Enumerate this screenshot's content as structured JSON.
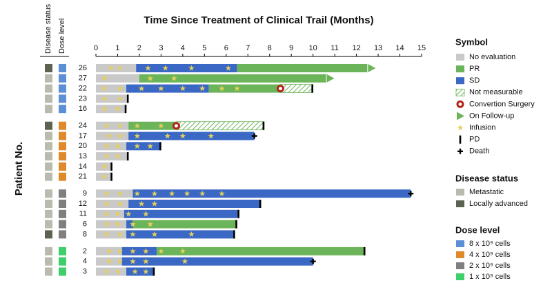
{
  "chart_data": {
    "type": "swimmer",
    "title": "Time Since Treatment of Clinical Trail (Months)",
    "ylabel": "Patient No.",
    "column_headers": [
      "Disease status",
      "Dose level"
    ],
    "xlim": [
      0,
      15
    ],
    "xticks": [
      0,
      1,
      2,
      3,
      4,
      5,
      6,
      7,
      8,
      9,
      10,
      11,
      12,
      13,
      14,
      15
    ],
    "legend_title": "Symbol",
    "symbols": [
      {
        "name": "No evaluation",
        "kind": "bar",
        "color": "#c9c9c9"
      },
      {
        "name": "PR",
        "kind": "bar",
        "color": "#6cb45a"
      },
      {
        "name": "SD",
        "kind": "bar",
        "color": "#3a68c4"
      },
      {
        "name": "Not measurable",
        "kind": "hatch",
        "color": "#6cb45a"
      },
      {
        "name": "Convertion Surgery",
        "kind": "ring",
        "color": "#b02418"
      },
      {
        "name": "On Follow-up",
        "kind": "arrow",
        "color": "#6cb45a"
      },
      {
        "name": "Infusion",
        "kind": "star",
        "color": "#e3cf5c"
      },
      {
        "name": "PD",
        "kind": "tick",
        "color": "#000000"
      },
      {
        "name": "Death",
        "kind": "plus",
        "color": "#000000"
      }
    ],
    "disease_status_title": "Disease status",
    "disease_statuses": [
      {
        "name": "Metastatic",
        "color": "#b8bbad"
      },
      {
        "name": "Locally advanced",
        "color": "#5c6350"
      }
    ],
    "dose_level_title": "Dose level",
    "dose_levels": [
      {
        "name": "8 x 10⁹ cells",
        "color": "#5b8fd6"
      },
      {
        "name": "4 x 10⁹ cells",
        "color": "#e0892b"
      },
      {
        "name": "2 x 10⁹ cells",
        "color": "#7f7f7f"
      },
      {
        "name": "1 x 10⁹ cells",
        "color": "#3fcf6a"
      }
    ],
    "groups": [
      {
        "dose_level": "8 x 10⁹ cells",
        "patients": [
          {
            "id": "26",
            "disease_status": "Locally advanced",
            "segments": [
              {
                "response": "No evaluation",
                "start": 0,
                "end": 1.85
              },
              {
                "response": "SD",
                "start": 1.85,
                "end": 6.5
              },
              {
                "response": "PR",
                "start": 6.5,
                "end": 12.5
              }
            ],
            "outcome": "On Follow-up",
            "infusions": [
              0.7,
              1.1,
              2.4,
              3.2,
              4.4,
              6.1
            ]
          },
          {
            "id": "27",
            "disease_status": "Metastatic",
            "segments": [
              {
                "response": "No evaluation",
                "start": 0,
                "end": 2.0
              },
              {
                "response": "PR",
                "start": 2.0,
                "end": 10.6
              }
            ],
            "outcome": "On Follow-up",
            "infusions": [
              0.4,
              2.5,
              3.6
            ]
          },
          {
            "id": "22",
            "disease_status": "Metastatic",
            "segments": [
              {
                "response": "No evaluation",
                "start": 0,
                "end": 1.4
              },
              {
                "response": "SD",
                "start": 1.4,
                "end": 5.2
              },
              {
                "response": "PR",
                "start": 5.2,
                "end": 8.5
              },
              {
                "response": "Not measurable",
                "start": 8.5,
                "end": 10.0
              }
            ],
            "surgery": 8.5,
            "outcome": "PD",
            "infusions": [
              0.4,
              1.1,
              2.1,
              3.0,
              4.0,
              4.9,
              5.8,
              6.5
            ]
          },
          {
            "id": "23",
            "disease_status": "Metastatic",
            "segments": [
              {
                "response": "No evaluation",
                "start": 0,
                "end": 1.5
              }
            ],
            "outcome": "PD",
            "infusions": [
              0.4,
              1.1
            ]
          },
          {
            "id": "16",
            "disease_status": "Metastatic",
            "segments": [
              {
                "response": "No evaluation",
                "start": 0,
                "end": 1.4
              }
            ],
            "outcome": "PD",
            "infusions": [
              0.4,
              1.0
            ]
          }
        ]
      },
      {
        "dose_level": "4 x 10⁹ cells",
        "patients": [
          {
            "id": "24",
            "disease_status": "Locally advanced",
            "segments": [
              {
                "response": "No evaluation",
                "start": 0,
                "end": 1.5
              },
              {
                "response": "PR",
                "start": 1.5,
                "end": 3.7
              },
              {
                "response": "Not measurable",
                "start": 3.7,
                "end": 7.75
              }
            ],
            "surgery": 3.7,
            "outcome": "PD",
            "infusions": [
              0.5,
              1.1,
              1.9,
              3.0
            ]
          },
          {
            "id": "17",
            "disease_status": "Metastatic",
            "segments": [
              {
                "response": "No evaluation",
                "start": 0,
                "end": 1.5
              },
              {
                "response": "SD",
                "start": 1.5,
                "end": 7.3
              }
            ],
            "outcome": "Death",
            "infusions": [
              0.6,
              1.1,
              1.9,
              3.3,
              4.0,
              5.3
            ]
          },
          {
            "id": "20",
            "disease_status": "Metastatic",
            "segments": [
              {
                "response": "No evaluation",
                "start": 0,
                "end": 1.4
              },
              {
                "response": "SD",
                "start": 1.4,
                "end": 3.0
              }
            ],
            "outcome": "PD",
            "infusions": [
              0.5,
              1.0,
              1.9,
              2.5
            ]
          },
          {
            "id": "13",
            "disease_status": "Metastatic",
            "segments": [
              {
                "response": "No evaluation",
                "start": 0,
                "end": 1.5
              }
            ],
            "outcome": "PD",
            "infusions": [
              0.5,
              1.0
            ]
          },
          {
            "id": "14",
            "disease_status": "Metastatic",
            "segments": [
              {
                "response": "No evaluation",
                "start": 0,
                "end": 0.75
              }
            ],
            "outcome": "PD",
            "infusions": [
              0.4
            ]
          },
          {
            "id": "21",
            "disease_status": "Metastatic",
            "segments": [
              {
                "response": "No evaluation",
                "start": 0,
                "end": 0.75
              }
            ],
            "outcome": "PD",
            "infusions": [
              0.4
            ]
          }
        ]
      },
      {
        "dose_level": "2 x 10⁹ cells",
        "patients": [
          {
            "id": "9",
            "disease_status": "Metastatic",
            "segments": [
              {
                "response": "No evaluation",
                "start": 0,
                "end": 1.7
              },
              {
                "response": "SD",
                "start": 1.7,
                "end": 14.5
              }
            ],
            "outcome": "Death",
            "infusions": [
              0.5,
              1.1,
              1.9,
              2.7,
              3.5,
              4.2,
              4.9,
              5.8
            ]
          },
          {
            "id": "12",
            "disease_status": "Metastatic",
            "segments": [
              {
                "response": "No evaluation",
                "start": 0,
                "end": 1.5
              },
              {
                "response": "SD",
                "start": 1.5,
                "end": 7.6
              }
            ],
            "outcome": "PD",
            "infusions": [
              0.5,
              1.1,
              2.1,
              2.7
            ]
          },
          {
            "id": "11",
            "disease_status": "Metastatic",
            "segments": [
              {
                "response": "No evaluation",
                "start": 0,
                "end": 1.3
              },
              {
                "response": "SD",
                "start": 1.3,
                "end": 6.6
              }
            ],
            "outcome": "PD",
            "infusions": [
              0.5,
              1.0,
              1.5,
              2.3
            ]
          },
          {
            "id": "6",
            "disease_status": "Metastatic",
            "segments": [
              {
                "response": "No evaluation",
                "start": 0,
                "end": 1.4
              },
              {
                "response": "SD",
                "start": 1.4,
                "end": 1.7
              },
              {
                "response": "PR",
                "start": 1.7,
                "end": 6.5
              }
            ],
            "outcome": "PD",
            "infusions": [
              0.5,
              1.0,
              1.7,
              2.5
            ]
          },
          {
            "id": "8",
            "disease_status": "Locally advanced",
            "segments": [
              {
                "response": "No evaluation",
                "start": 0,
                "end": 1.4
              },
              {
                "response": "SD",
                "start": 1.4,
                "end": 6.4
              }
            ],
            "outcome": "PD",
            "infusions": [
              0.5,
              1.1,
              1.7,
              2.7,
              4.4
            ]
          }
        ]
      },
      {
        "dose_level": "1 x 10⁹ cells",
        "patients": [
          {
            "id": "2",
            "disease_status": "Metastatic",
            "segments": [
              {
                "response": "No evaluation",
                "start": 0,
                "end": 1.2
              },
              {
                "response": "SD",
                "start": 1.2,
                "end": 2.8
              },
              {
                "response": "PR",
                "start": 2.8,
                "end": 12.4
              }
            ],
            "outcome": "PD",
            "infusions": [
              0.6,
              1.1,
              1.7,
              2.3,
              3.0,
              4.0
            ]
          },
          {
            "id": "4",
            "disease_status": "Metastatic",
            "segments": [
              {
                "response": "No evaluation",
                "start": 0,
                "end": 1.2
              },
              {
                "response": "SD",
                "start": 1.2,
                "end": 10.0
              }
            ],
            "outcome": "Death",
            "infusions": [
              0.6,
              1.1,
              1.7,
              2.3,
              4.1
            ]
          },
          {
            "id": "3",
            "disease_status": "Metastatic",
            "segments": [
              {
                "response": "No evaluation",
                "start": 0,
                "end": 1.4
              },
              {
                "response": "SD",
                "start": 1.4,
                "end": 2.7
              }
            ],
            "outcome": "PD",
            "infusions": [
              0.5,
              1.0,
              1.8,
              2.3
            ]
          }
        ]
      }
    ]
  }
}
